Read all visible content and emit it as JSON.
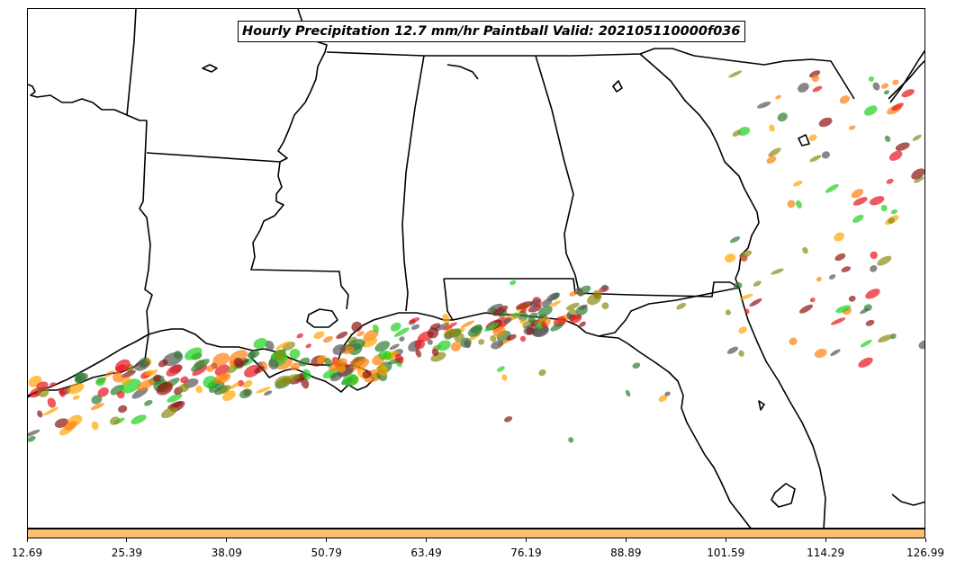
{
  "title": "Hourly Precipitation 12.7 mm/hr Paintball Valid: 202105110000f036",
  "colorbar": {
    "color": "#fdbf6f",
    "ticks": [
      "12.69",
      "25.39",
      "38.09",
      "50.79",
      "63.49",
      "76.19",
      "88.89",
      "101.59",
      "114.29",
      "126.99"
    ]
  },
  "palette": {
    "red": "#e8141c",
    "green": "#1cd21c",
    "orange": "#ff7f0e",
    "dark-red": "#8b1414",
    "olive": "#8c8c14",
    "dark-green": "#2e7d32",
    "gray": "#555555",
    "amber": "#ffa500"
  }
}
